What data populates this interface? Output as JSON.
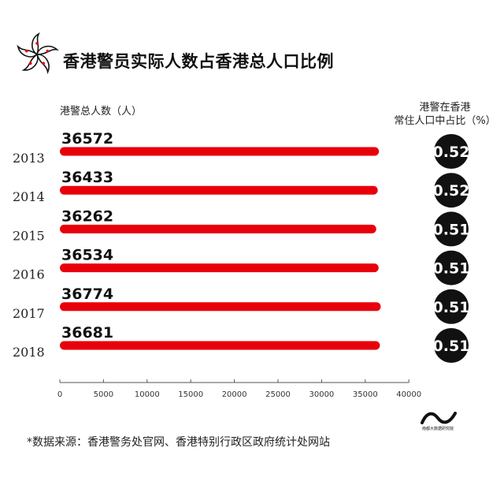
{
  "header": {
    "title": "香港警员实际人数占香港总人口比例"
  },
  "chart_data": {
    "type": "bar",
    "orientation": "horizontal",
    "title": "香港警员实际人数占香港总人口比例",
    "xlabel": "港警总人数（人）",
    "categories": [
      "2013",
      "2014",
      "2015",
      "2016",
      "2017",
      "2018"
    ],
    "series": [
      {
        "name": "港警总人数（人）",
        "values": [
          36572,
          36433,
          36262,
          36534,
          36774,
          36681
        ]
      }
    ],
    "ratio": {
      "label": "港警在香港常住人口中占比（%）",
      "label_line1": "港警在香港",
      "label_line2": "常住人口中占比（%）",
      "values": [
        "0.52",
        "0.52",
        "0.51",
        "0.51",
        "0.51",
        "0.51"
      ]
    },
    "xlim": [
      0,
      40000
    ],
    "xticks": [
      "0",
      "5000",
      "10000",
      "15000",
      "20000",
      "25000",
      "30000",
      "35000",
      "40000"
    ],
    "grid": false,
    "colors": {
      "bar": "#e8000b",
      "circle": "#111111"
    }
  },
  "footer": {
    "source": "*数据来源：香港警务处官网、香港特别行政区政府统计处网站",
    "brand": "南都大数据研究院"
  }
}
